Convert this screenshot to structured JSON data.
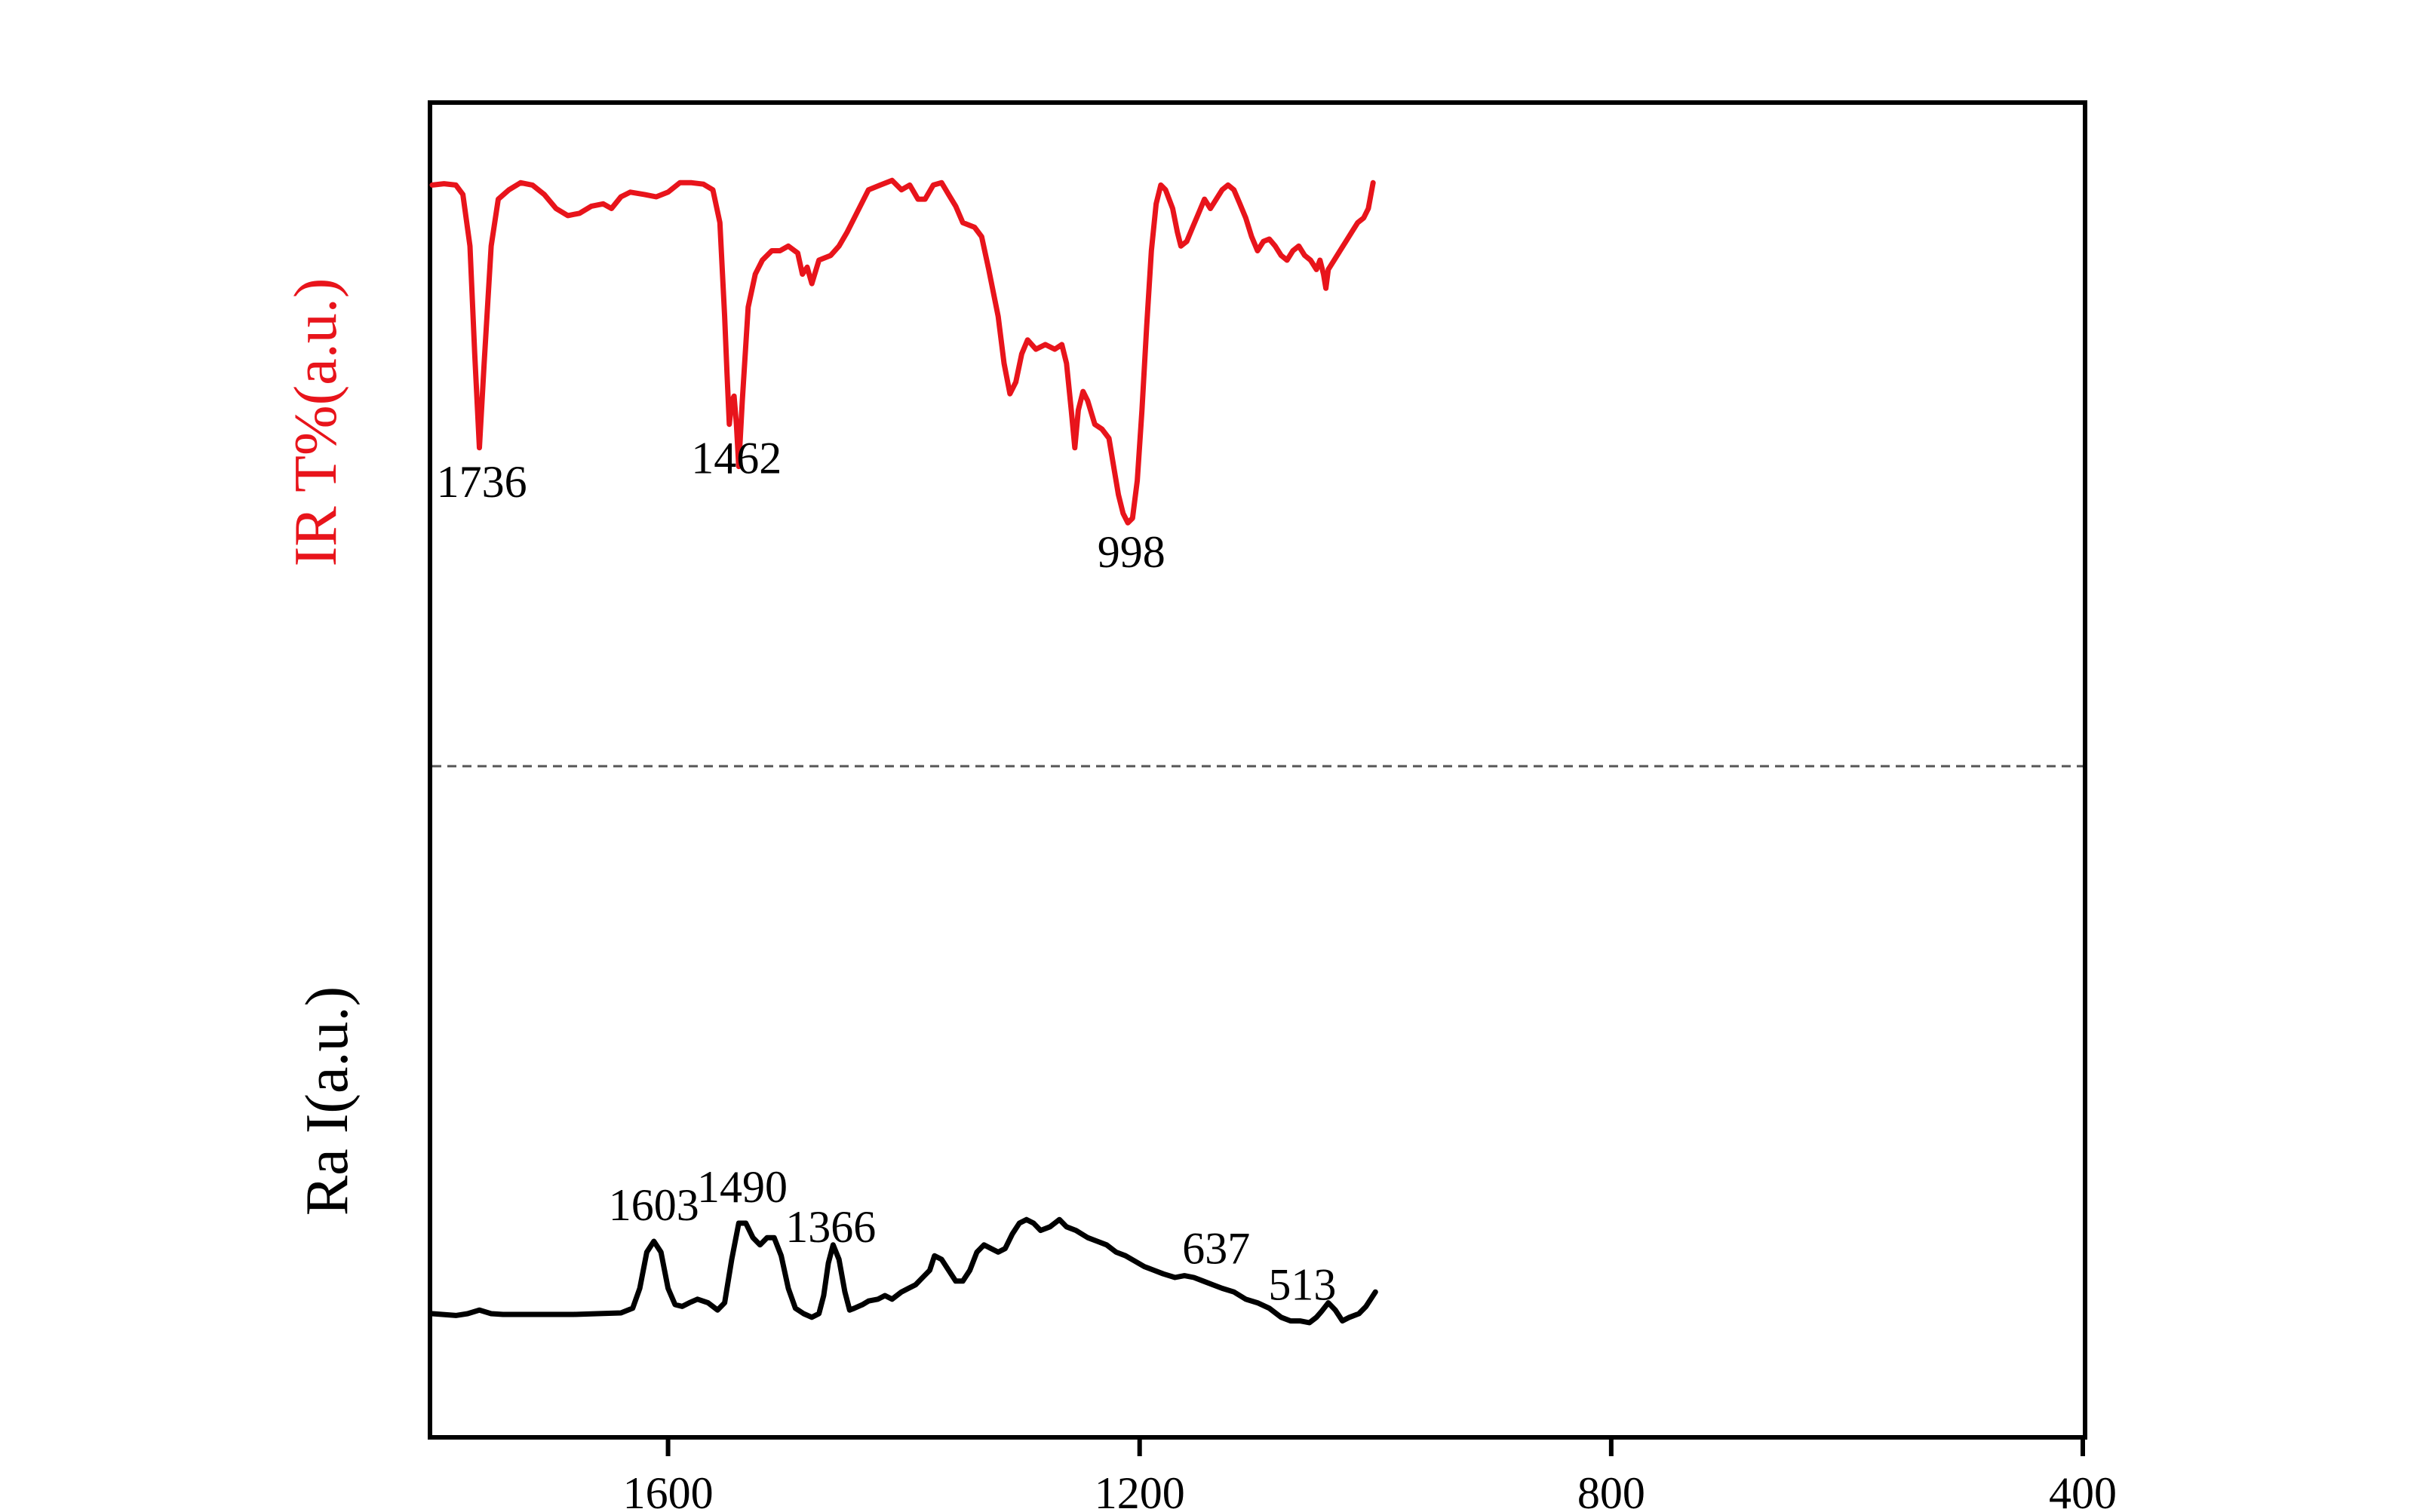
{
  "chart_data": {
    "type": "line",
    "title": "",
    "xlabel": "",
    "xlim": [
      1800,
      400
    ],
    "x_reversed": true,
    "xticks": [
      1600,
      1200,
      800,
      400
    ],
    "grid": false,
    "divider": "dashed horizontal line between the two panels",
    "series": [
      {
        "name": "IR",
        "ylabel": "IR T%(a.u.)",
        "color": "#e8141b",
        "points": [
          [
            1800,
            0.98
          ],
          [
            1790,
            0.983
          ],
          [
            1780,
            0.98
          ],
          [
            1774,
            0.96
          ],
          [
            1768,
            0.85
          ],
          [
            1764,
            0.62
          ],
          [
            1760,
            0.42
          ],
          [
            1756,
            0.6
          ],
          [
            1750,
            0.85
          ],
          [
            1744,
            0.95
          ],
          [
            1735,
            0.97
          ],
          [
            1725,
            0.985
          ],
          [
            1715,
            0.98
          ],
          [
            1705,
            0.96
          ],
          [
            1695,
            0.93
          ],
          [
            1685,
            0.915
          ],
          [
            1675,
            0.92
          ],
          [
            1665,
            0.935
          ],
          [
            1655,
            0.94
          ],
          [
            1648,
            0.93
          ],
          [
            1640,
            0.955
          ],
          [
            1632,
            0.965
          ],
          [
            1620,
            0.96
          ],
          [
            1610,
            0.955
          ],
          [
            1600,
            0.965
          ],
          [
            1590,
            0.985
          ],
          [
            1580,
            0.985
          ],
          [
            1570,
            0.982
          ],
          [
            1562,
            0.97
          ],
          [
            1556,
            0.9
          ],
          [
            1552,
            0.7
          ],
          [
            1550,
            0.58
          ],
          [
            1548,
            0.47
          ],
          [
            1546,
            0.52
          ],
          [
            1544,
            0.53
          ],
          [
            1542,
            0.47
          ],
          [
            1540,
            0.38
          ],
          [
            1537,
            0.52
          ],
          [
            1532,
            0.72
          ],
          [
            1526,
            0.79
          ],
          [
            1520,
            0.82
          ],
          [
            1512,
            0.84
          ],
          [
            1505,
            0.84
          ],
          [
            1498,
            0.85
          ],
          [
            1490,
            0.835
          ],
          [
            1486,
            0.79
          ],
          [
            1482,
            0.805
          ],
          [
            1478,
            0.77
          ],
          [
            1472,
            0.82
          ],
          [
            1462,
            0.83
          ],
          [
            1455,
            0.85
          ],
          [
            1448,
            0.88
          ],
          [
            1440,
            0.92
          ],
          [
            1430,
            0.97
          ],
          [
            1420,
            0.98
          ],
          [
            1410,
            0.99
          ],
          [
            1402,
            0.97
          ],
          [
            1395,
            0.98
          ],
          [
            1388,
            0.95
          ],
          [
            1382,
            0.95
          ],
          [
            1375,
            0.98
          ],
          [
            1368,
            0.985
          ],
          [
            1362,
            0.96
          ],
          [
            1356,
            0.935
          ],
          [
            1350,
            0.9
          ],
          [
            1340,
            0.89
          ],
          [
            1334,
            0.87
          ],
          [
            1328,
            0.8
          ],
          [
            1320,
            0.7
          ],
          [
            1315,
            0.6
          ],
          [
            1310,
            0.535
          ],
          [
            1305,
            0.56
          ],
          [
            1300,
            0.62
          ],
          [
            1295,
            0.65
          ],
          [
            1288,
            0.63
          ],
          [
            1280,
            0.64
          ],
          [
            1272,
            0.63
          ],
          [
            1266,
            0.64
          ],
          [
            1262,
            0.6
          ],
          [
            1258,
            0.5
          ],
          [
            1255,
            0.42
          ],
          [
            1252,
            0.5
          ],
          [
            1248,
            0.54
          ],
          [
            1244,
            0.52
          ],
          [
            1238,
            0.47
          ],
          [
            1232,
            0.46
          ],
          [
            1226,
            0.44
          ],
          [
            1222,
            0.38
          ],
          [
            1218,
            0.32
          ],
          [
            1214,
            0.28
          ],
          [
            1210,
            0.26
          ],
          [
            1206,
            0.27
          ],
          [
            1202,
            0.35
          ],
          [
            1198,
            0.5
          ],
          [
            1194,
            0.68
          ],
          [
            1190,
            0.84
          ],
          [
            1186,
            0.94
          ],
          [
            1182,
            0.98
          ],
          [
            1178,
            0.97
          ],
          [
            1172,
            0.93
          ],
          [
            1168,
            0.88
          ],
          [
            1165,
            0.85
          ],
          [
            1160,
            0.86
          ],
          [
            1155,
            0.89
          ],
          [
            1150,
            0.92
          ],
          [
            1145,
            0.95
          ],
          [
            1140,
            0.93
          ],
          [
            1135,
            0.95
          ],
          [
            1130,
            0.97
          ],
          [
            1125,
            0.98
          ],
          [
            1120,
            0.97
          ],
          [
            1115,
            0.94
          ],
          [
            1110,
            0.91
          ],
          [
            1105,
            0.87
          ],
          [
            1100,
            0.84
          ],
          [
            1095,
            0.86
          ],
          [
            1090,
            0.865
          ],
          [
            1085,
            0.85
          ],
          [
            1080,
            0.83
          ],
          [
            1075,
            0.82
          ],
          [
            1070,
            0.84
          ],
          [
            1065,
            0.85
          ],
          [
            1060,
            0.83
          ],
          [
            1055,
            0.82
          ],
          [
            1050,
            0.8
          ],
          [
            1047,
            0.82
          ],
          [
            1044,
            0.79
          ],
          [
            1042,
            0.76
          ],
          [
            1040,
            0.8
          ],
          [
            1035,
            0.82
          ],
          [
            1030,
            0.84
          ],
          [
            1025,
            0.86
          ],
          [
            1020,
            0.88
          ],
          [
            1015,
            0.9
          ],
          [
            1010,
            0.91
          ],
          [
            1006,
            0.93
          ],
          [
            1002,
            0.985
          ]
        ],
        "annotations": [
          {
            "text": "1736",
            "x": 1758
          },
          {
            "text": "1462",
            "x": 1542
          },
          {
            "text": "998",
            "x": 1207
          }
        ]
      },
      {
        "name": "Ra",
        "ylabel": "Ra I(a.u.)",
        "color": "#000000",
        "points": [
          [
            1800,
            0.1
          ],
          [
            1780,
            0.095
          ],
          [
            1770,
            0.1
          ],
          [
            1760,
            0.11
          ],
          [
            1750,
            0.1
          ],
          [
            1740,
            0.098
          ],
          [
            1720,
            0.098
          ],
          [
            1700,
            0.098
          ],
          [
            1680,
            0.098
          ],
          [
            1660,
            0.1
          ],
          [
            1640,
            0.102
          ],
          [
            1630,
            0.115
          ],
          [
            1624,
            0.17
          ],
          [
            1618,
            0.27
          ],
          [
            1612,
            0.3
          ],
          [
            1606,
            0.27
          ],
          [
            1600,
            0.17
          ],
          [
            1594,
            0.125
          ],
          [
            1588,
            0.12
          ],
          [
            1582,
            0.13
          ],
          [
            1575,
            0.14
          ],
          [
            1566,
            0.13
          ],
          [
            1558,
            0.11
          ],
          [
            1552,
            0.13
          ],
          [
            1546,
            0.25
          ],
          [
            1540,
            0.35
          ],
          [
            1534,
            0.35
          ],
          [
            1528,
            0.31
          ],
          [
            1522,
            0.29
          ],
          [
            1516,
            0.31
          ],
          [
            1510,
            0.31
          ],
          [
            1504,
            0.26
          ],
          [
            1498,
            0.17
          ],
          [
            1492,
            0.115
          ],
          [
            1485,
            0.1
          ],
          [
            1478,
            0.09
          ],
          [
            1472,
            0.1
          ],
          [
            1468,
            0.15
          ],
          [
            1464,
            0.24
          ],
          [
            1460,
            0.29
          ],
          [
            1455,
            0.25
          ],
          [
            1450,
            0.16
          ],
          [
            1446,
            0.11
          ],
          [
            1442,
            0.115
          ],
          [
            1435,
            0.125
          ],
          [
            1430,
            0.135
          ],
          [
            1422,
            0.14
          ],
          [
            1416,
            0.15
          ],
          [
            1410,
            0.14
          ],
          [
            1402,
            0.16
          ],
          [
            1396,
            0.17
          ],
          [
            1390,
            0.18
          ],
          [
            1384,
            0.2
          ],
          [
            1378,
            0.22
          ],
          [
            1374,
            0.26
          ],
          [
            1368,
            0.25
          ],
          [
            1362,
            0.22
          ],
          [
            1356,
            0.19
          ],
          [
            1350,
            0.19
          ],
          [
            1344,
            0.22
          ],
          [
            1338,
            0.27
          ],
          [
            1332,
            0.29
          ],
          [
            1326,
            0.28
          ],
          [
            1320,
            0.27
          ],
          [
            1314,
            0.28
          ],
          [
            1308,
            0.32
          ],
          [
            1302,
            0.35
          ],
          [
            1296,
            0.36
          ],
          [
            1290,
            0.35
          ],
          [
            1284,
            0.33
          ],
          [
            1276,
            0.34
          ],
          [
            1268,
            0.36
          ],
          [
            1262,
            0.34
          ],
          [
            1254,
            0.33
          ],
          [
            1244,
            0.31
          ],
          [
            1236,
            0.3
          ],
          [
            1228,
            0.29
          ],
          [
            1220,
            0.27
          ],
          [
            1212,
            0.26
          ],
          [
            1204,
            0.245
          ],
          [
            1196,
            0.23
          ],
          [
            1188,
            0.22
          ],
          [
            1180,
            0.21
          ],
          [
            1170,
            0.2
          ],
          [
            1162,
            0.205
          ],
          [
            1154,
            0.2
          ],
          [
            1146,
            0.19
          ],
          [
            1138,
            0.18
          ],
          [
            1130,
            0.17
          ],
          [
            1120,
            0.16
          ],
          [
            1110,
            0.14
          ],
          [
            1100,
            0.13
          ],
          [
            1090,
            0.115
          ],
          [
            1080,
            0.09
          ],
          [
            1072,
            0.08
          ],
          [
            1064,
            0.08
          ],
          [
            1056,
            0.075
          ],
          [
            1050,
            0.09
          ],
          [
            1046,
            0.105
          ],
          [
            1040,
            0.13
          ],
          [
            1034,
            0.11
          ],
          [
            1028,
            0.08
          ],
          [
            1022,
            0.09
          ],
          [
            1014,
            0.1
          ],
          [
            1008,
            0.12
          ],
          [
            1000,
            0.16
          ]
        ],
        "annotations": [
          {
            "text": "1603",
            "x": 1612
          },
          {
            "text": "1490",
            "x": 1537
          },
          {
            "text": "1366",
            "x": 1462
          },
          {
            "text": "637",
            "x": 1135
          },
          {
            "text": "513",
            "x": 1062
          }
        ]
      }
    ]
  }
}
